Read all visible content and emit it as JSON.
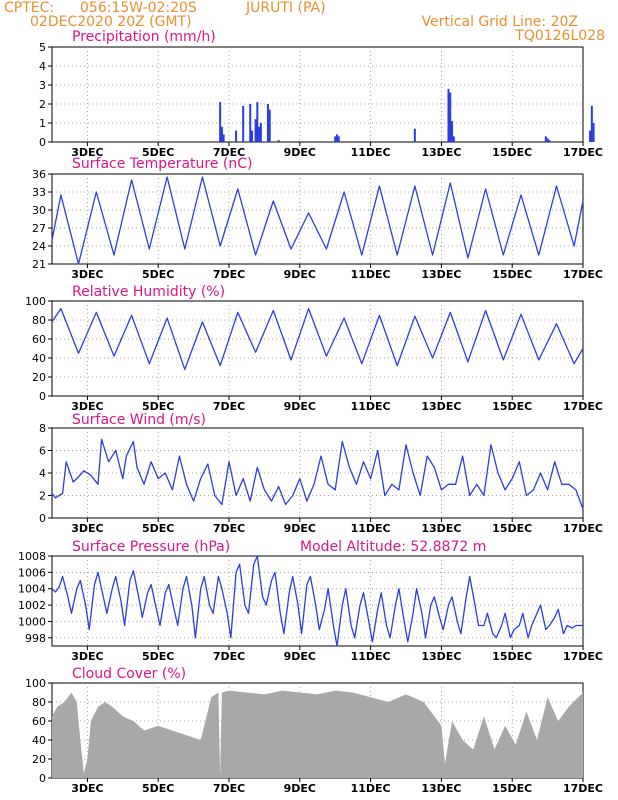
{
  "header": {
    "source": "CPTEC:",
    "coords": "056:15W-02:20S",
    "location": "JURUTI (PA)",
    "run": "02DEC2020 20Z (GMT)",
    "grid_note": "Vertical Grid Line: 20Z",
    "model": "TQ0126L028"
  },
  "colors": {
    "header": "#e8902c",
    "title": "#d8158a",
    "line": "#2a3ee0",
    "bar": "#2a3ee0",
    "cloud": "#a8a8a8"
  },
  "x_ticks": [
    "3DEC",
    "5DEC",
    "7DEC",
    "9DEC",
    "11DEC",
    "13DEC",
    "15DEC",
    "17DEC"
  ],
  "chart_data": [
    {
      "id": "precip",
      "type": "bar",
      "title": "Precipitation (mm/h)",
      "ylim": [
        0,
        5
      ],
      "yticks": [
        0,
        1,
        2,
        3,
        4,
        5
      ],
      "x_unit": "days since 02DEC2020 20Z",
      "x": [
        4.75,
        4.8,
        4.85,
        5.2,
        5.4,
        5.6,
        5.65,
        5.75,
        5.8,
        5.85,
        5.9,
        6.1,
        6.15,
        6.4,
        8.0,
        8.05,
        8.1,
        10.25,
        11.2,
        11.25,
        11.3,
        11.35,
        13.95,
        14.0,
        14.05,
        15.2,
        15.25,
        15.3
      ],
      "values": [
        2.1,
        0.8,
        0.4,
        0.6,
        1.9,
        2.0,
        0.6,
        1.2,
        2.1,
        0.8,
        1.0,
        2.0,
        1.7,
        0.1,
        0.3,
        0.4,
        0.3,
        0.7,
        2.8,
        2.6,
        1.1,
        0.3,
        0.3,
        0.2,
        0.1,
        0.6,
        1.9,
        1.0
      ]
    },
    {
      "id": "temp",
      "type": "line",
      "title": "Surface Temperature (nC)",
      "ylim": [
        21,
        36
      ],
      "yticks": [
        21,
        24,
        27,
        30,
        33,
        36
      ],
      "diurnal": {
        "days": [
          0,
          1,
          2,
          3,
          4,
          5,
          6,
          7,
          8,
          9,
          10,
          11,
          12,
          13,
          14
        ],
        "max": [
          32.5,
          33.0,
          35.0,
          35.5,
          35.5,
          33.5,
          31.5,
          29.5,
          33.0,
          34.0,
          34.0,
          34.5,
          33.5,
          32.5,
          34.0
        ],
        "min": [
          21.0,
          22.5,
          23.5,
          23.5,
          24.0,
          22.5,
          23.5,
          23.5,
          22.5,
          22.5,
          22.5,
          22.0,
          22.5,
          22.5,
          24.0
        ]
      },
      "start": 25.0,
      "end": 31.5
    },
    {
      "id": "rh",
      "type": "line",
      "title": "Relative Humidity (%)",
      "ylim": [
        0,
        100
      ],
      "yticks": [
        0,
        20,
        40,
        60,
        80,
        100
      ],
      "diurnal": {
        "days": [
          0,
          1,
          2,
          3,
          4,
          5,
          6,
          7,
          8,
          9,
          10,
          11,
          12,
          13,
          14
        ],
        "max": [
          92,
          88,
          85,
          82,
          78,
          88,
          90,
          92,
          82,
          85,
          84,
          88,
          90,
          86,
          76
        ],
        "min": [
          45,
          42,
          34,
          28,
          32,
          46,
          38,
          42,
          34,
          32,
          40,
          36,
          38,
          38,
          34
        ]
      },
      "start": 78,
      "end": 50
    },
    {
      "id": "wind",
      "type": "line",
      "title": "Surface Wind (m/s)",
      "ylim": [
        0,
        8
      ],
      "yticks": [
        0,
        2,
        4,
        6,
        8
      ],
      "x": [
        0,
        0.1,
        0.3,
        0.4,
        0.6,
        0.7,
        0.9,
        1.1,
        1.3,
        1.4,
        1.6,
        1.8,
        2.0,
        2.1,
        2.3,
        2.4,
        2.6,
        2.8,
        3.0,
        3.2,
        3.4,
        3.6,
        3.8,
        4.0,
        4.2,
        4.4,
        4.6,
        4.8,
        5.0,
        5.2,
        5.4,
        5.6,
        5.8,
        6.0,
        6.2,
        6.4,
        6.6,
        6.8,
        7.0,
        7.2,
        7.4,
        7.6,
        7.8,
        8.0,
        8.2,
        8.4,
        8.6,
        8.8,
        9.0,
        9.2,
        9.4,
        9.6,
        9.8,
        10.0,
        10.2,
        10.4,
        10.6,
        10.8,
        11.0,
        11.2,
        11.4,
        11.6,
        11.8,
        12.0,
        12.2,
        12.4,
        12.6,
        12.8,
        13.0,
        13.2,
        13.4,
        13.6,
        13.8,
        14.0,
        14.2,
        14.4,
        14.6,
        14.8,
        15.0
      ],
      "values": [
        2.2,
        1.8,
        2.2,
        5.0,
        3.2,
        3.5,
        4.2,
        3.8,
        3.0,
        7.0,
        5.0,
        6.0,
        3.5,
        5.5,
        6.8,
        4.5,
        3.0,
        5.0,
        3.5,
        4.0,
        2.5,
        5.5,
        3.0,
        1.5,
        3.5,
        4.8,
        2.0,
        1.2,
        5.0,
        2.0,
        3.5,
        1.5,
        4.5,
        2.5,
        1.5,
        2.8,
        1.2,
        2.0,
        3.5,
        1.5,
        3.0,
        5.5,
        3.0,
        2.5,
        6.8,
        4.5,
        3.0,
        5.0,
        3.5,
        6.0,
        2.0,
        3.0,
        2.5,
        6.5,
        4.0,
        2.0,
        5.5,
        4.5,
        2.5,
        3.0,
        3.0,
        5.5,
        2.0,
        3.0,
        2.0,
        6.5,
        4.0,
        2.5,
        3.5,
        5.0,
        2.0,
        2.5,
        4.0,
        2.5,
        5.0,
        3.0,
        3.0,
        2.5,
        0.8
      ]
    },
    {
      "id": "pressure",
      "type": "line",
      "title": "Surface Pressure (hPa)",
      "note": "Model Altitude: 52.8872 m",
      "ylim": [
        997,
        1008
      ],
      "yticks": [
        998,
        1000,
        1002,
        1004,
        1006,
        1008
      ],
      "x": [
        0,
        0.1,
        0.2,
        0.3,
        0.45,
        0.55,
        0.7,
        0.8,
        0.95,
        1.05,
        1.2,
        1.3,
        1.45,
        1.55,
        1.7,
        1.8,
        1.95,
        2.05,
        2.2,
        2.3,
        2.45,
        2.55,
        2.7,
        2.8,
        2.95,
        3.05,
        3.2,
        3.3,
        3.45,
        3.55,
        3.7,
        3.8,
        3.95,
        4.05,
        4.2,
        4.3,
        4.45,
        4.55,
        4.7,
        4.8,
        4.95,
        5.05,
        5.2,
        5.3,
        5.45,
        5.55,
        5.7,
        5.8,
        5.95,
        6.05,
        6.2,
        6.3,
        6.45,
        6.55,
        6.7,
        6.8,
        6.95,
        7.05,
        7.2,
        7.3,
        7.45,
        7.55,
        7.7,
        7.8,
        7.95,
        8.05,
        8.2,
        8.3,
        8.45,
        8.55,
        8.7,
        8.8,
        8.95,
        9.05,
        9.2,
        9.3,
        9.45,
        9.55,
        9.7,
        9.8,
        9.95,
        10.05,
        10.2,
        10.3,
        10.45,
        10.55,
        10.7,
        10.8,
        10.95,
        11.05,
        11.2,
        11.3,
        11.45,
        11.55,
        11.7,
        11.8,
        11.95,
        12.05,
        12.2,
        12.3,
        12.45,
        12.55,
        12.7,
        12.8,
        12.95,
        13.05,
        13.2,
        13.3,
        13.45,
        13.55,
        13.7,
        13.8,
        13.95,
        14.05,
        14.2,
        14.3,
        14.45,
        14.55,
        14.7,
        14.8,
        15.0
      ],
      "values": [
        1004,
        1003.6,
        1004.2,
        1005.5,
        1003,
        1001,
        1004,
        1005,
        1002,
        999,
        1004.5,
        1006,
        1003,
        1001,
        1004,
        1005.5,
        1002.5,
        999.5,
        1005,
        1006.2,
        1003,
        1000.5,
        1003.5,
        1004.5,
        1001.5,
        999.5,
        1003.5,
        1004.5,
        1001.5,
        999.5,
        1004,
        1005.5,
        1002,
        998,
        1004,
        1005.5,
        1002,
        1001,
        1005.5,
        1004,
        1001,
        998,
        1006,
        1007,
        1002,
        1001,
        1007,
        1008,
        1003,
        1002,
        1005,
        1006,
        1001,
        998.5,
        1003.5,
        1005.5,
        1002,
        998.5,
        1004.5,
        1005.5,
        1002,
        999,
        1001.5,
        1004,
        999.5,
        997,
        1002,
        1004,
        999.5,
        998,
        1002,
        1003.5,
        1000,
        997.5,
        1001.5,
        1003.5,
        999.5,
        998,
        1002,
        1004,
        1000,
        997.5,
        1001,
        1004,
        1001,
        998,
        1002,
        1003,
        1000.5,
        999,
        1002,
        1003,
        1000,
        998.5,
        1003,
        1005.5,
        1002,
        999.5,
        999.5,
        1001,
        998.5,
        998,
        999.5,
        1001,
        998,
        999,
        999.5,
        1001,
        998,
        999.5,
        1001,
        1002,
        999,
        999.5,
        1000.5,
        1001.5,
        998.5,
        999.5,
        999.2,
        999.5,
        999.5
      ]
    },
    {
      "id": "cloud",
      "type": "area",
      "title": "Cloud Cover (%)",
      "ylim": [
        0,
        100
      ],
      "yticks": [
        0,
        20,
        40,
        60,
        80,
        100
      ],
      "x": [
        0,
        0.15,
        0.35,
        0.55,
        0.7,
        0.8,
        0.9,
        1.0,
        1.1,
        1.3,
        1.5,
        1.7,
        2.0,
        2.3,
        2.6,
        3.0,
        3.4,
        3.8,
        4.2,
        4.5,
        4.7,
        4.75,
        4.8,
        5.0,
        5.5,
        6.0,
        6.5,
        7.0,
        7.5,
        8.0,
        8.5,
        9.0,
        9.5,
        10.0,
        10.5,
        11.0,
        11.1,
        11.3,
        11.6,
        11.9,
        12.2,
        12.5,
        12.8,
        13.1,
        13.4,
        13.7,
        14.0,
        14.3,
        14.6,
        15.0
      ],
      "values": [
        65,
        75,
        80,
        90,
        80,
        40,
        5,
        20,
        60,
        75,
        80,
        75,
        65,
        60,
        50,
        55,
        50,
        45,
        40,
        85,
        90,
        2,
        90,
        92,
        90,
        88,
        92,
        90,
        88,
        92,
        90,
        85,
        80,
        88,
        80,
        55,
        15,
        60,
        40,
        30,
        65,
        30,
        55,
        35,
        70,
        40,
        85,
        60,
        75,
        90
      ]
    }
  ]
}
